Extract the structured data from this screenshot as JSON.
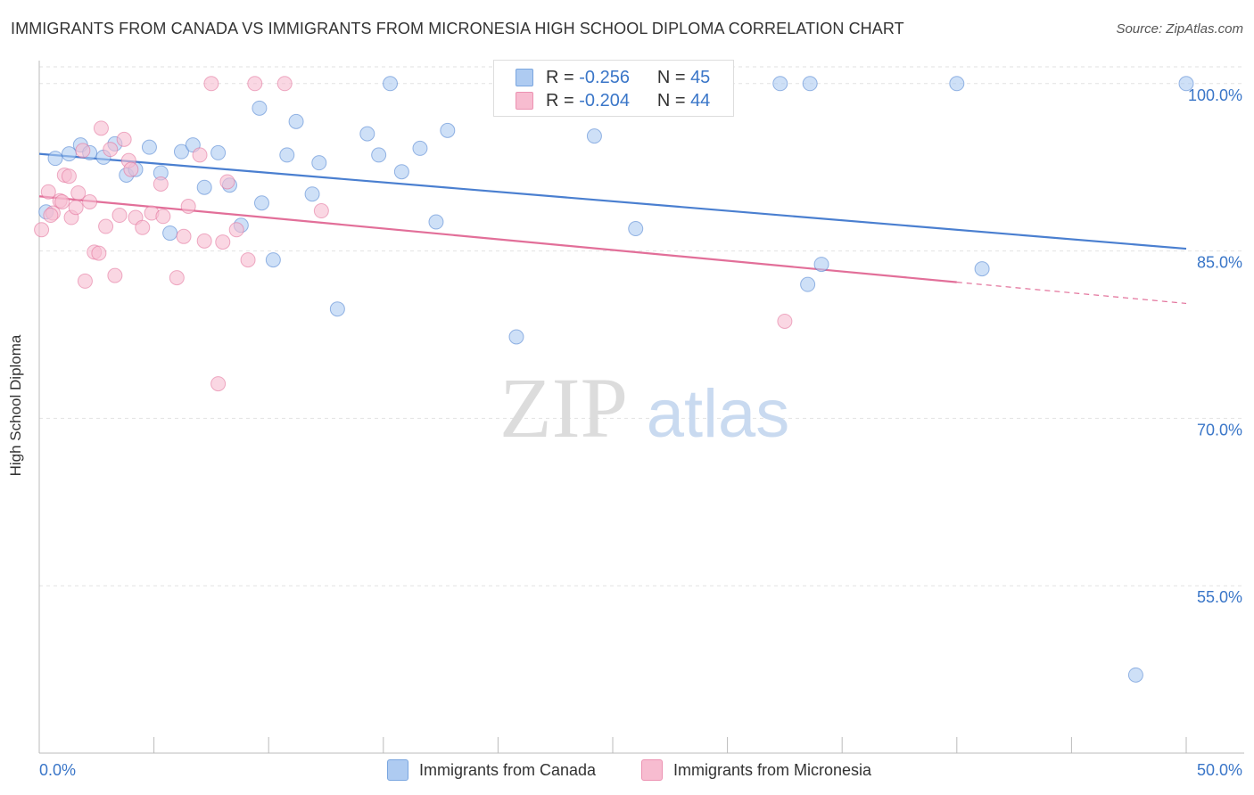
{
  "title": "IMMIGRANTS FROM CANADA VS IMMIGRANTS FROM MICRONESIA HIGH SCHOOL DIPLOMA CORRELATION CHART",
  "source": "Source: ZipAtlas.com",
  "watermark": {
    "zip": "ZIP",
    "atlas": "atlas"
  },
  "stats": [
    {
      "r_label": "R =",
      "r_value": "-0.256",
      "n_label": "N =",
      "n_value": "45",
      "color": "#aecbf1"
    },
    {
      "r_label": "R =",
      "r_value": "-0.204",
      "n_label": "N =",
      "n_value": "44",
      "color": "#f7bcd0"
    }
  ],
  "legend": [
    {
      "label": "Immigrants from Canada",
      "color": "#aecbf1"
    },
    {
      "label": "Immigrants from Micronesia",
      "color": "#f7bcd0"
    }
  ],
  "chart_data": {
    "type": "scatter",
    "title": "IMMIGRANTS FROM CANADA VS IMMIGRANTS FROM MICRONESIA HIGH SCHOOL DIPLOMA CORRELATION CHART",
    "xlabel": "",
    "ylabel": "High School Diploma",
    "xlim": [
      0,
      50
    ],
    "ylim": [
      40,
      101.5
    ],
    "x_tick_labels": [
      "0.0%",
      "50.0%"
    ],
    "y_ticks": [
      100,
      85,
      70,
      55
    ],
    "y_tick_labels": [
      "100.0%",
      "85.0%",
      "70.0%",
      "55.0%"
    ],
    "grid": true,
    "series": [
      {
        "name": "Immigrants from Canada",
        "color": "#4a7fd0",
        "fill": "#aecbf1",
        "points": [
          [
            0.3,
            88.5
          ],
          [
            0.7,
            93.3
          ],
          [
            1.3,
            93.7
          ],
          [
            1.8,
            94.5
          ],
          [
            2.2,
            93.8
          ],
          [
            2.8,
            93.4
          ],
          [
            3.3,
            94.6
          ],
          [
            3.8,
            91.8
          ],
          [
            4.2,
            92.3
          ],
          [
            4.8,
            94.3
          ],
          [
            5.3,
            92.0
          ],
          [
            5.7,
            86.6
          ],
          [
            6.2,
            93.9
          ],
          [
            6.7,
            94.5
          ],
          [
            7.2,
            90.7
          ],
          [
            7.8,
            93.8
          ],
          [
            8.3,
            90.9
          ],
          [
            8.8,
            87.3
          ],
          [
            9.6,
            97.8
          ],
          [
            9.7,
            89.3
          ],
          [
            10.2,
            84.2
          ],
          [
            10.8,
            93.6
          ],
          [
            11.2,
            96.6
          ],
          [
            11.9,
            90.1
          ],
          [
            12.2,
            92.9
          ],
          [
            13.0,
            79.8
          ],
          [
            14.3,
            95.5
          ],
          [
            14.8,
            93.6
          ],
          [
            15.3,
            100.0
          ],
          [
            15.8,
            92.1
          ],
          [
            16.6,
            94.2
          ],
          [
            17.3,
            87.6
          ],
          [
            17.8,
            95.8
          ],
          [
            20.8,
            77.3
          ],
          [
            24.2,
            95.3
          ],
          [
            26.0,
            87.0
          ],
          [
            29.8,
            100.0
          ],
          [
            32.3,
            100.0
          ],
          [
            33.6,
            100.0
          ],
          [
            33.5,
            82.0
          ],
          [
            34.1,
            83.8
          ],
          [
            40.0,
            100.0
          ],
          [
            41.1,
            83.4
          ],
          [
            50.0,
            100.0
          ],
          [
            47.8,
            47.0
          ]
        ],
        "trend": {
          "x": [
            0,
            50
          ],
          "y": [
            93.7,
            85.2
          ]
        }
      },
      {
        "name": "Immigrants from Micronesia",
        "color": "#e26f99",
        "fill": "#f7bcd0",
        "points": [
          [
            0.1,
            86.9
          ],
          [
            0.4,
            90.3
          ],
          [
            0.6,
            88.4
          ],
          [
            0.9,
            89.5
          ],
          [
            1.1,
            91.8
          ],
          [
            1.3,
            91.7
          ],
          [
            1.4,
            88.0
          ],
          [
            1.6,
            88.9
          ],
          [
            1.7,
            90.2
          ],
          [
            1.9,
            94.0
          ],
          [
            2.0,
            82.3
          ],
          [
            2.2,
            89.4
          ],
          [
            2.4,
            84.9
          ],
          [
            2.6,
            84.8
          ],
          [
            2.7,
            96.0
          ],
          [
            2.9,
            87.2
          ],
          [
            3.1,
            94.1
          ],
          [
            3.3,
            82.8
          ],
          [
            3.5,
            88.2
          ],
          [
            3.7,
            95.0
          ],
          [
            3.9,
            93.1
          ],
          [
            4.0,
            92.3
          ],
          [
            4.2,
            88.0
          ],
          [
            4.5,
            87.1
          ],
          [
            4.9,
            88.4
          ],
          [
            5.3,
            91.0
          ],
          [
            5.4,
            88.1
          ],
          [
            6.0,
            82.6
          ],
          [
            6.3,
            86.3
          ],
          [
            6.5,
            89.0
          ],
          [
            7.0,
            93.6
          ],
          [
            7.2,
            85.9
          ],
          [
            7.8,
            73.1
          ],
          [
            8.0,
            85.8
          ],
          [
            8.2,
            91.2
          ],
          [
            8.6,
            86.9
          ],
          [
            9.1,
            84.2
          ],
          [
            9.4,
            100.0
          ],
          [
            10.7,
            100.0
          ],
          [
            12.3,
            88.6
          ],
          [
            7.5,
            100.0
          ],
          [
            32.5,
            78.7
          ],
          [
            1.0,
            89.4
          ],
          [
            0.5,
            88.2
          ]
        ],
        "trend": {
          "x": [
            0,
            40
          ],
          "y": [
            89.9,
            82.2
          ]
        },
        "trend_dashed": {
          "x": [
            40,
            50
          ],
          "y": [
            82.2,
            80.3
          ]
        }
      }
    ]
  }
}
